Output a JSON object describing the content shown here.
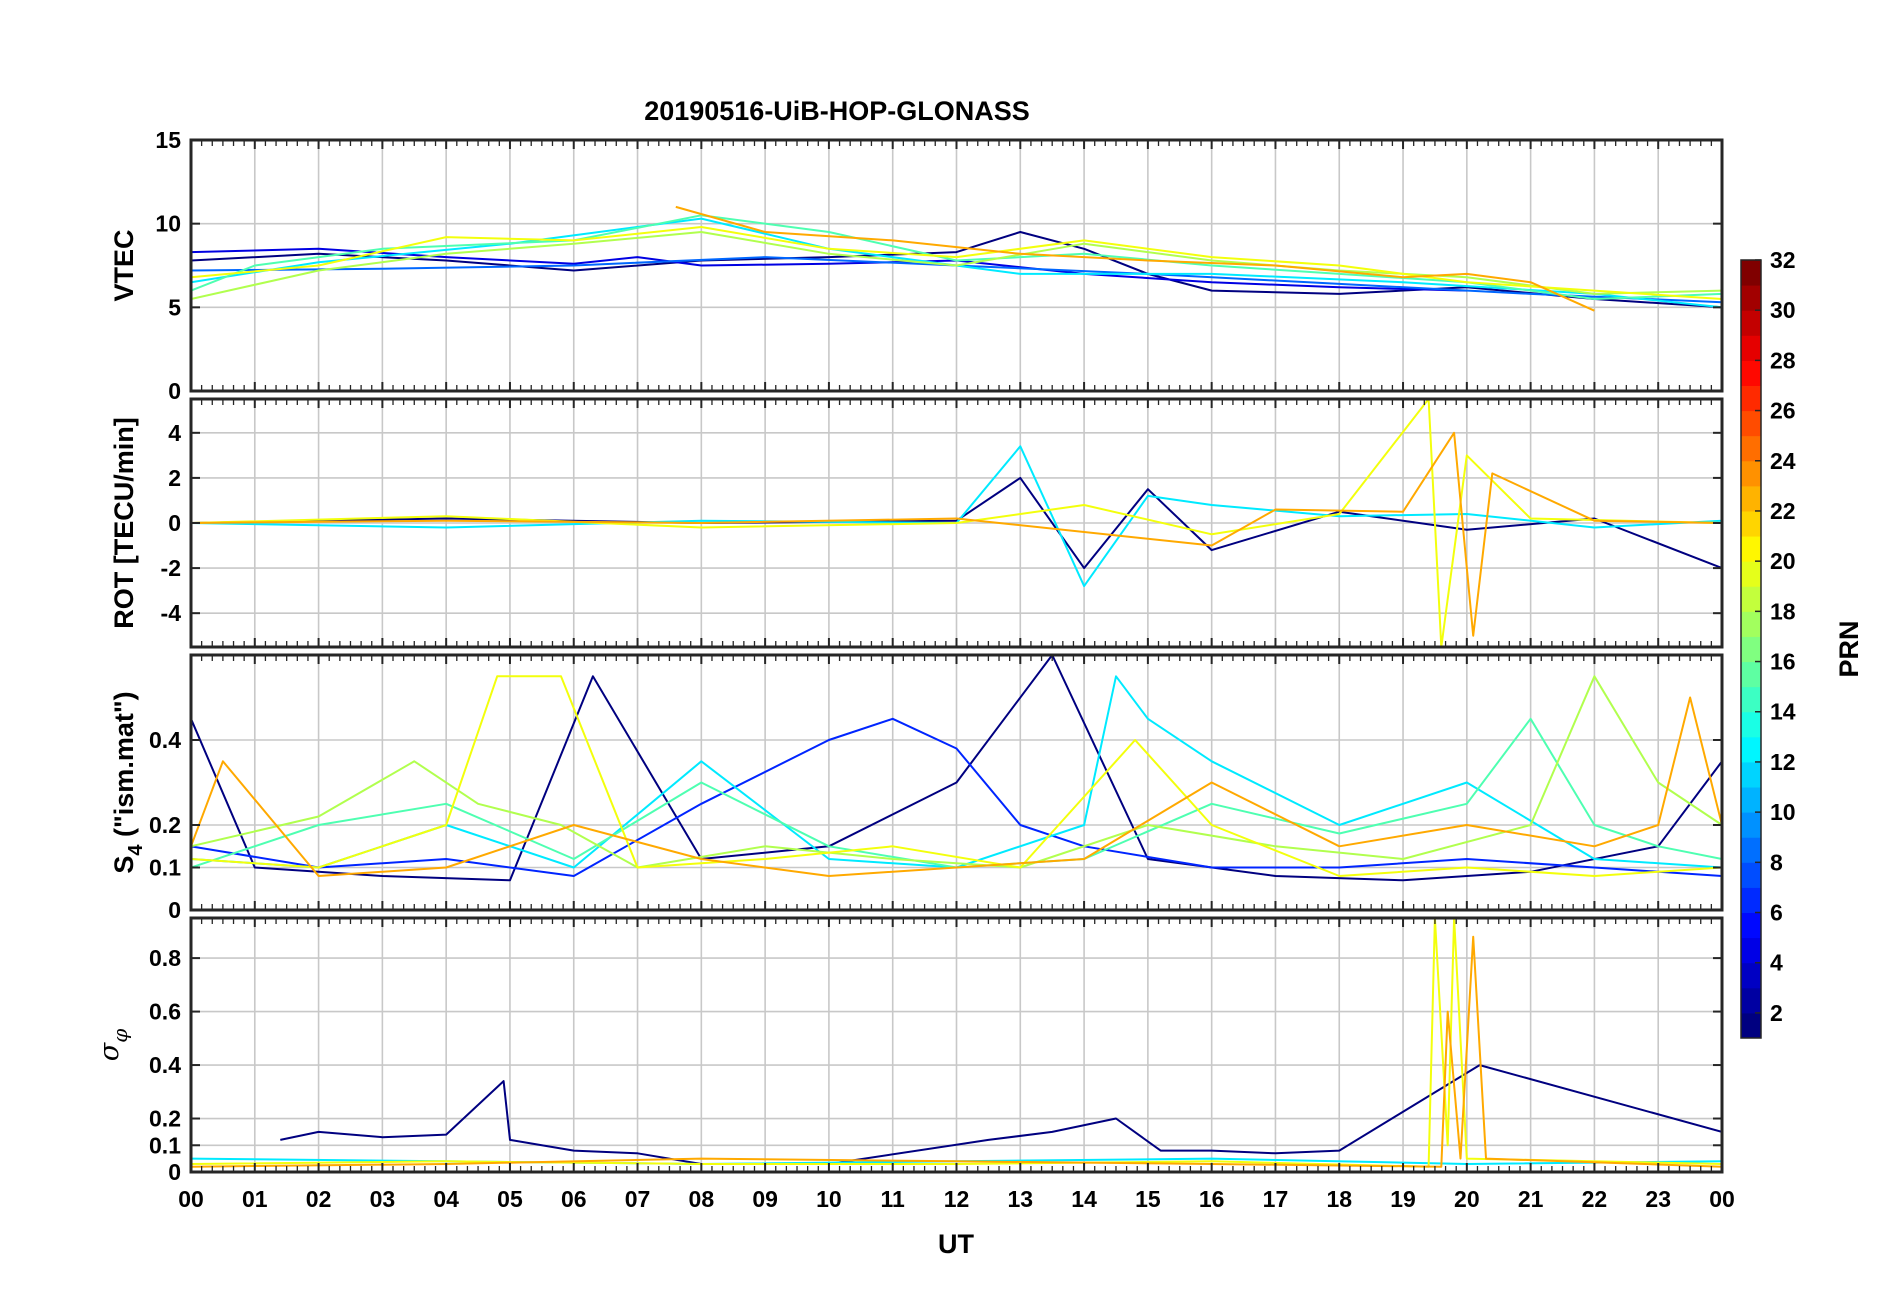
{
  "chart_data": {
    "type": "line",
    "title": "20190516-UiB-HOP-GLONASS",
    "xlabel": "UT",
    "x_range_hours": [
      0,
      24
    ],
    "x_tick_labels": [
      "00",
      "01",
      "02",
      "03",
      "04",
      "05",
      "06",
      "07",
      "08",
      "09",
      "10",
      "11",
      "12",
      "13",
      "14",
      "15",
      "16",
      "17",
      "18",
      "19",
      "20",
      "21",
      "22",
      "23",
      "00"
    ],
    "grid": true,
    "colorbar": {
      "label": "PRN",
      "range": [
        1,
        32
      ],
      "ticks": [
        "2",
        "4",
        "6",
        "8",
        "10",
        "12",
        "14",
        "16",
        "18",
        "20",
        "22",
        "24",
        "26",
        "28",
        "30",
        "32"
      ],
      "colormap": "jet"
    },
    "panels": [
      {
        "name": "vtec",
        "ylabel": "VTEC",
        "ylim": [
          0,
          15
        ],
        "yticks": [
          0,
          5,
          10,
          15
        ],
        "ytick_labels": [
          "0",
          "5",
          "10",
          "15"
        ],
        "series": [
          {
            "name": "PRN 1",
            "prn": 1,
            "x": [
              0,
              2,
              4,
              6,
              8,
              10,
              12,
              13,
              14,
              15,
              16,
              18,
              20,
              22,
              24
            ],
            "y": [
              7.8,
              8.2,
              7.8,
              7.2,
              7.8,
              8,
              8.3,
              9.5,
              8.5,
              7,
              6,
              5.8,
              6.2,
              5.5,
              5
            ]
          },
          {
            "name": "PRN 4",
            "prn": 4,
            "x": [
              0,
              2,
              4,
              6,
              7,
              8,
              10,
              12,
              14,
              16,
              18,
              20
            ],
            "y": [
              8.3,
              8.5,
              8,
              7.6,
              8,
              7.5,
              7.6,
              7.8,
              7,
              6.5,
              6.2,
              6
            ]
          },
          {
            "name": "PRN 8",
            "prn": 8,
            "x": [
              0,
              3,
              6,
              9,
              12,
              15,
              18,
              21,
              24
            ],
            "y": [
              7.2,
              7.3,
              7.5,
              8,
              7.5,
              7,
              6.4,
              5.8,
              5.3
            ]
          },
          {
            "name": "PRN 12",
            "prn": 12,
            "x": [
              0,
              2,
              5,
              8,
              10,
              13,
              16,
              19,
              22,
              24
            ],
            "y": [
              6.5,
              7.7,
              8.8,
              10.3,
              8.5,
              7,
              7,
              6.5,
              5.8,
              5
            ]
          },
          {
            "name": "PRN 15",
            "prn": 15,
            "x": [
              0,
              1,
              3,
              6,
              8,
              10,
              12,
              14,
              16,
              18,
              20,
              22,
              24
            ],
            "y": [
              6,
              7.5,
              8.5,
              9,
              10.5,
              9.5,
              7.8,
              8.2,
              7.5,
              7,
              6.5,
              5.5,
              5.8
            ]
          },
          {
            "name": "PRN 18",
            "prn": 18,
            "x": [
              0,
              2,
              4,
              6,
              8,
              10,
              12,
              14,
              16,
              18,
              20,
              22,
              24
            ],
            "y": [
              5.5,
              7.2,
              8.2,
              8.8,
              9.5,
              8.2,
              7.5,
              8.8,
              7.8,
              7.2,
              6.8,
              5.8,
              6
            ]
          },
          {
            "name": "PRN 20",
            "prn": 20,
            "x": [
              0,
              2,
              4,
              6,
              8,
              10,
              12,
              14,
              16,
              18,
              20,
              22,
              24
            ],
            "y": [
              6.8,
              7.5,
              9.2,
              9,
              9.8,
              8.5,
              8,
              9,
              8,
              7.5,
              6.5,
              6,
              5.5
            ]
          },
          {
            "name": "PRN 23",
            "prn": 23,
            "x": [
              7.6,
              9,
              11,
              13,
              15,
              17,
              19,
              20,
              21,
              22
            ],
            "y": [
              11,
              9.5,
              9,
              8.2,
              7.8,
              7.5,
              6.8,
              7,
              6.5,
              4.8
            ]
          }
        ]
      },
      {
        "name": "rot",
        "ylabel": "ROT [TECU/min]",
        "ylim": [
          -5.5,
          5.5
        ],
        "yticks": [
          -4,
          -2,
          0,
          2,
          4
        ],
        "ytick_labels": [
          "-4",
          "-2",
          "0",
          "2",
          "4"
        ],
        "series": [
          {
            "name": "PRN 1",
            "prn": 1,
            "x": [
              0,
              4,
              8,
              12,
              13,
              14,
              15,
              16,
              18,
              20,
              22,
              24
            ],
            "y": [
              0,
              0.2,
              0,
              0.1,
              2,
              -2,
              1.5,
              -1.2,
              0.5,
              -0.3,
              0.2,
              -2
            ]
          },
          {
            "name": "PRN 12",
            "prn": 12,
            "x": [
              0,
              4,
              8,
              12,
              13,
              14,
              15,
              16,
              18,
              20,
              22,
              24
            ],
            "y": [
              0,
              -0.2,
              0.1,
              0,
              3.4,
              -2.8,
              1.2,
              0.8,
              0.3,
              0.4,
              -0.2,
              0.1
            ]
          },
          {
            "name": "PRN 20",
            "prn": 20,
            "x": [
              0,
              4,
              8,
              12,
              14,
              16,
              18,
              19.4,
              19.6,
              20,
              21,
              24
            ],
            "y": [
              0,
              0.3,
              -0.2,
              0,
              0.8,
              -0.5,
              0.4,
              5.5,
              -5.5,
              3,
              0.2,
              0
            ]
          },
          {
            "name": "PRN 23",
            "prn": 23,
            "x": [
              0,
              4,
              8,
              12,
              16,
              17,
              19,
              19.8,
              20.1,
              20.4,
              22,
              24
            ],
            "y": [
              0,
              0.1,
              0,
              0.2,
              -1,
              0.6,
              0.5,
              4,
              -5,
              2.2,
              0.1,
              0
            ]
          }
        ]
      },
      {
        "name": "s4",
        "ylabel": "S4 (\"ism.mat\")",
        "ylabel_main": "S",
        "ylabel_sub": "4",
        "ylabel_rest": " (\"ism.mat\")",
        "ylim": [
          0,
          0.6
        ],
        "yticks": [
          0,
          0.1,
          0.2,
          0.4
        ],
        "ytick_labels": [
          "0",
          "0.1",
          "0.2",
          "0.4"
        ],
        "series": [
          {
            "name": "PRN 1",
            "prn": 1,
            "x": [
              0,
              1,
              3,
              5,
              6.3,
              8,
              10,
              12,
              13.5,
              15,
              17,
              19,
              21,
              23,
              24
            ],
            "y": [
              0.45,
              0.1,
              0.08,
              0.07,
              0.55,
              0.12,
              0.15,
              0.3,
              0.6,
              0.12,
              0.08,
              0.07,
              0.09,
              0.15,
              0.35
            ]
          },
          {
            "name": "PRN 6",
            "prn": 6,
            "x": [
              0,
              2,
              4,
              6,
              8,
              10,
              11,
              12,
              13,
              14,
              16,
              18,
              20,
              22,
              24
            ],
            "y": [
              0.15,
              0.1,
              0.12,
              0.08,
              0.25,
              0.4,
              0.45,
              0.38,
              0.2,
              0.15,
              0.1,
              0.1,
              0.12,
              0.1,
              0.08
            ]
          },
          {
            "name": "PRN 12",
            "prn": 12,
            "x": [
              0,
              2,
              4,
              6,
              8,
              10,
              12,
              14,
              14.5,
              15,
              16,
              18,
              20,
              22,
              24
            ],
            "y": [
              0.12,
              0.1,
              0.2,
              0.1,
              0.35,
              0.12,
              0.1,
              0.2,
              0.55,
              0.45,
              0.35,
              0.2,
              0.3,
              0.12,
              0.1
            ]
          },
          {
            "name": "PRN 15",
            "prn": 15,
            "x": [
              0,
              2,
              4,
              6,
              8,
              10,
              12,
              14,
              16,
              18,
              20,
              21,
              22,
              23,
              24
            ],
            "y": [
              0.1,
              0.2,
              0.25,
              0.12,
              0.3,
              0.15,
              0.1,
              0.12,
              0.25,
              0.18,
              0.25,
              0.45,
              0.2,
              0.15,
              0.12
            ]
          },
          {
            "name": "PRN 18",
            "prn": 18,
            "x": [
              0,
              2,
              3.5,
              4.5,
              5.8,
              7,
              9,
              11,
              13,
              15,
              17,
              19,
              21,
              22,
              23,
              24
            ],
            "y": [
              0.15,
              0.22,
              0.35,
              0.25,
              0.2,
              0.1,
              0.15,
              0.12,
              0.1,
              0.2,
              0.15,
              0.12,
              0.2,
              0.55,
              0.3,
              0.2
            ]
          },
          {
            "name": "PRN 20",
            "prn": 20,
            "x": [
              0,
              2,
              4,
              4.8,
              5.8,
              7,
              9,
              11,
              13,
              14.8,
              16,
              18,
              20,
              22,
              24
            ],
            "y": [
              0.12,
              0.1,
              0.2,
              0.55,
              0.55,
              0.1,
              0.12,
              0.15,
              0.1,
              0.4,
              0.2,
              0.08,
              0.1,
              0.08,
              0.1
            ]
          },
          {
            "name": "PRN 23",
            "prn": 23,
            "x": [
              0,
              0.5,
              2,
              4,
              6,
              8,
              10,
              12,
              14,
              16,
              18,
              20,
              22,
              23,
              23.5,
              24
            ],
            "y": [
              0.15,
              0.35,
              0.08,
              0.1,
              0.2,
              0.12,
              0.08,
              0.1,
              0.12,
              0.3,
              0.15,
              0.2,
              0.15,
              0.2,
              0.5,
              0.2
            ]
          }
        ]
      },
      {
        "name": "sigma_phi",
        "ylabel": "σφ",
        "ylabel_main": "σ",
        "ylabel_sub": "φ",
        "ylim": [
          0,
          0.95
        ],
        "yticks": [
          0,
          0.1,
          0.2,
          0.4,
          0.6,
          0.8
        ],
        "ytick_labels": [
          "0",
          "0.1",
          "0.2",
          "0.4",
          "0.6",
          "0.8"
        ],
        "series": [
          {
            "name": "PRN 1",
            "prn": 1,
            "x": [
              1.4,
              2,
              3,
              4,
              4.9,
              5,
              6,
              7,
              8,
              10,
              12.5,
              13.5,
              14.5,
              15.2,
              16,
              17,
              18,
              20.2,
              24
            ],
            "y": [
              0.12,
              0.15,
              0.13,
              0.14,
              0.34,
              0.12,
              0.08,
              0.07,
              0.03,
              0.03,
              0.12,
              0.15,
              0.2,
              0.08,
              0.08,
              0.07,
              0.08,
              0.4,
              0.15
            ]
          },
          {
            "name": "PRN 12",
            "prn": 12,
            "x": [
              0,
              4,
              8,
              12,
              16,
              20,
              24
            ],
            "y": [
              0.05,
              0.04,
              0.03,
              0.04,
              0.05,
              0.03,
              0.04
            ]
          },
          {
            "name": "PRN 20",
            "prn": 20,
            "x": [
              0,
              4,
              8,
              12,
              16,
              19.4,
              19.5,
              19.7,
              19.8,
              20,
              24
            ],
            "y": [
              0.03,
              0.04,
              0.03,
              0.03,
              0.04,
              0.02,
              0.95,
              0.1,
              0.95,
              0.05,
              0.03
            ]
          },
          {
            "name": "PRN 23",
            "prn": 23,
            "x": [
              0,
              4,
              8,
              12,
              16,
              19.6,
              19.7,
              19.9,
              20.1,
              20.3,
              24
            ],
            "y": [
              0.02,
              0.03,
              0.05,
              0.04,
              0.03,
              0.02,
              0.6,
              0.05,
              0.88,
              0.05,
              0.02
            ]
          }
        ]
      }
    ]
  }
}
